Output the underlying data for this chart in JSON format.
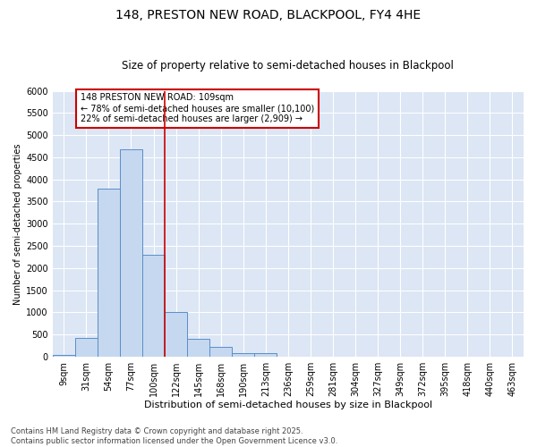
{
  "title1": "148, PRESTON NEW ROAD, BLACKPOOL, FY4 4HE",
  "title2": "Size of property relative to semi-detached houses in Blackpool",
  "xlabel": "Distribution of semi-detached houses by size in Blackpool",
  "ylabel": "Number of semi-detached properties",
  "categories": [
    "9sqm",
    "31sqm",
    "54sqm",
    "77sqm",
    "100sqm",
    "122sqm",
    "145sqm",
    "168sqm",
    "190sqm",
    "213sqm",
    "236sqm",
    "259sqm",
    "281sqm",
    "304sqm",
    "327sqm",
    "349sqm",
    "372sqm",
    "395sqm",
    "418sqm",
    "440sqm",
    "463sqm"
  ],
  "values": [
    50,
    430,
    3800,
    4680,
    2300,
    1000,
    400,
    230,
    80,
    80,
    0,
    0,
    0,
    0,
    0,
    0,
    0,
    0,
    0,
    0,
    0
  ],
  "bar_color": "#c5d8f0",
  "bar_edge_color": "#5b8dc8",
  "vline_color": "#cc0000",
  "annotation_text": "148 PRESTON NEW ROAD: 109sqm\n← 78% of semi-detached houses are smaller (10,100)\n22% of semi-detached houses are larger (2,909) →",
  "annotation_box_color": "#cc0000",
  "ylim": [
    0,
    6000
  ],
  "yticks": [
    0,
    500,
    1000,
    1500,
    2000,
    2500,
    3000,
    3500,
    4000,
    4500,
    5000,
    5500,
    6000
  ],
  "bg_color": "#dce6f5",
  "grid_color": "#ffffff",
  "footnote": "Contains HM Land Registry data © Crown copyright and database right 2025.\nContains public sector information licensed under the Open Government Licence v3.0.",
  "title1_fontsize": 10,
  "title2_fontsize": 8.5,
  "xlabel_fontsize": 8,
  "ylabel_fontsize": 7,
  "tick_fontsize": 7,
  "annot_fontsize": 7,
  "footnote_fontsize": 6
}
